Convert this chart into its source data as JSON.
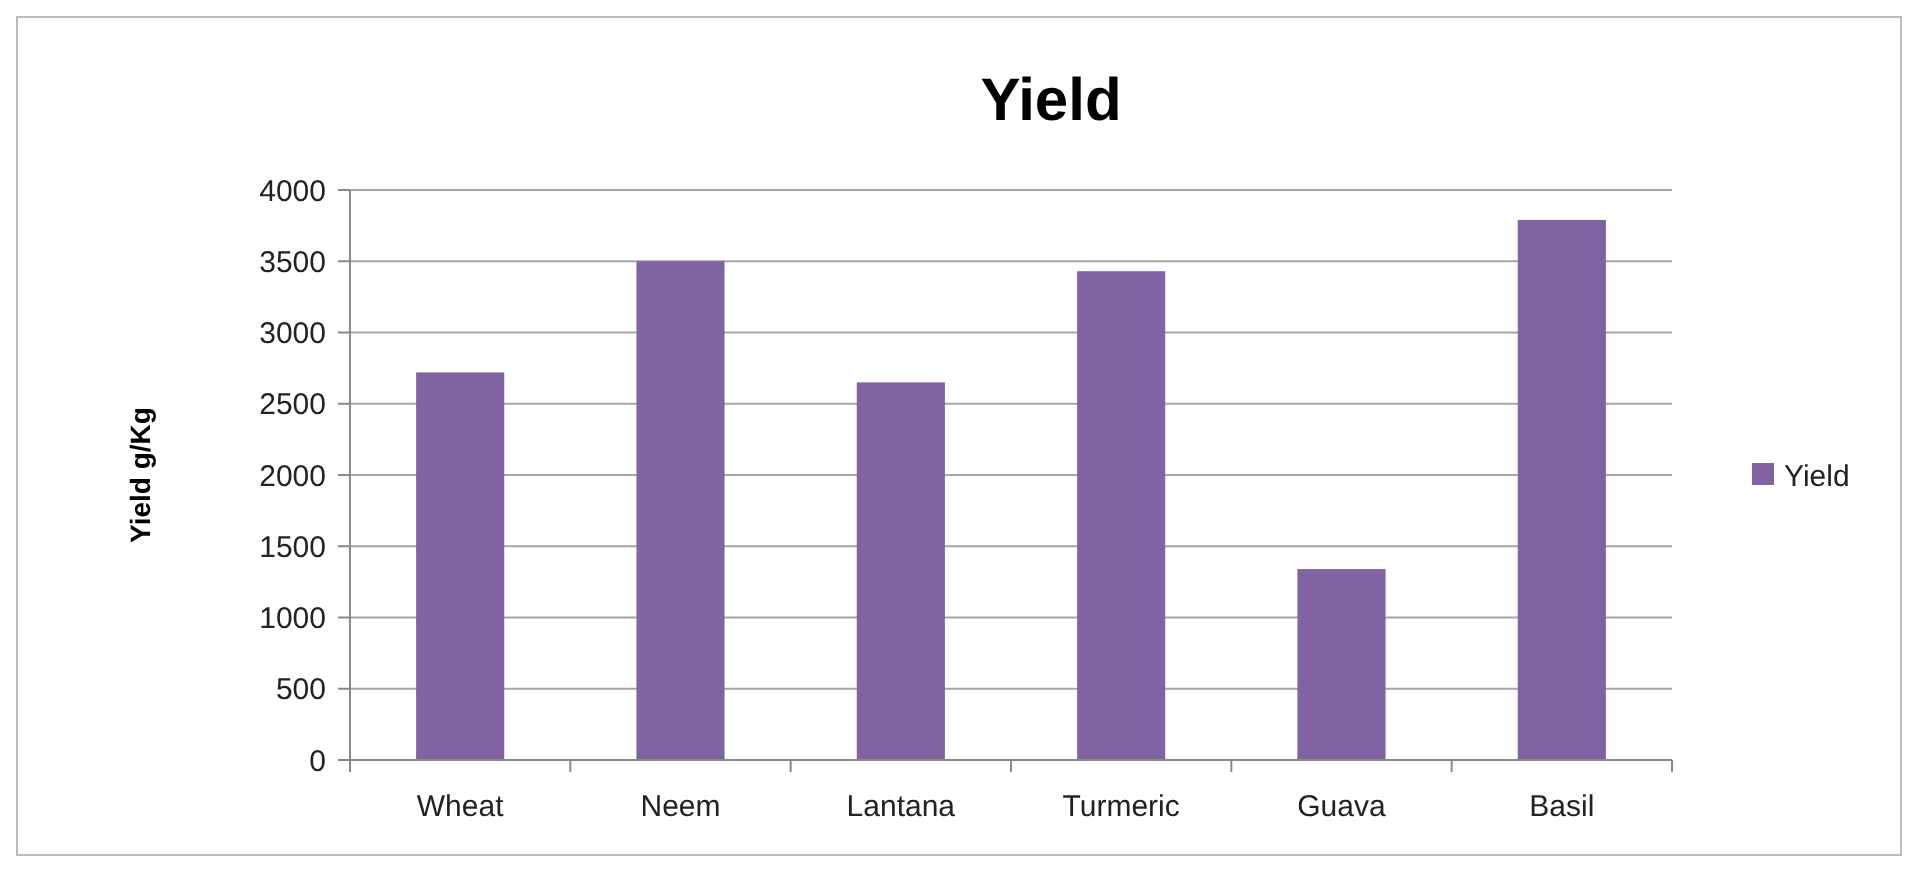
{
  "chart_data": {
    "type": "bar",
    "title": "Yield",
    "ylabel": "Yield g/Kg",
    "categories": [
      "Wheat",
      "Neem",
      "Lantana",
      "Turmeric",
      "Guava",
      "Basil"
    ],
    "series": [
      {
        "name": "Yield",
        "color": "#8064a2",
        "values": [
          2720,
          3500,
          2650,
          3430,
          1340,
          3790
        ]
      }
    ],
    "ylim": [
      0,
      4000
    ],
    "yticks": [
      0,
      500,
      1000,
      1500,
      2000,
      2500,
      3000,
      3500,
      4000
    ],
    "grid": "y",
    "legend": "right"
  }
}
